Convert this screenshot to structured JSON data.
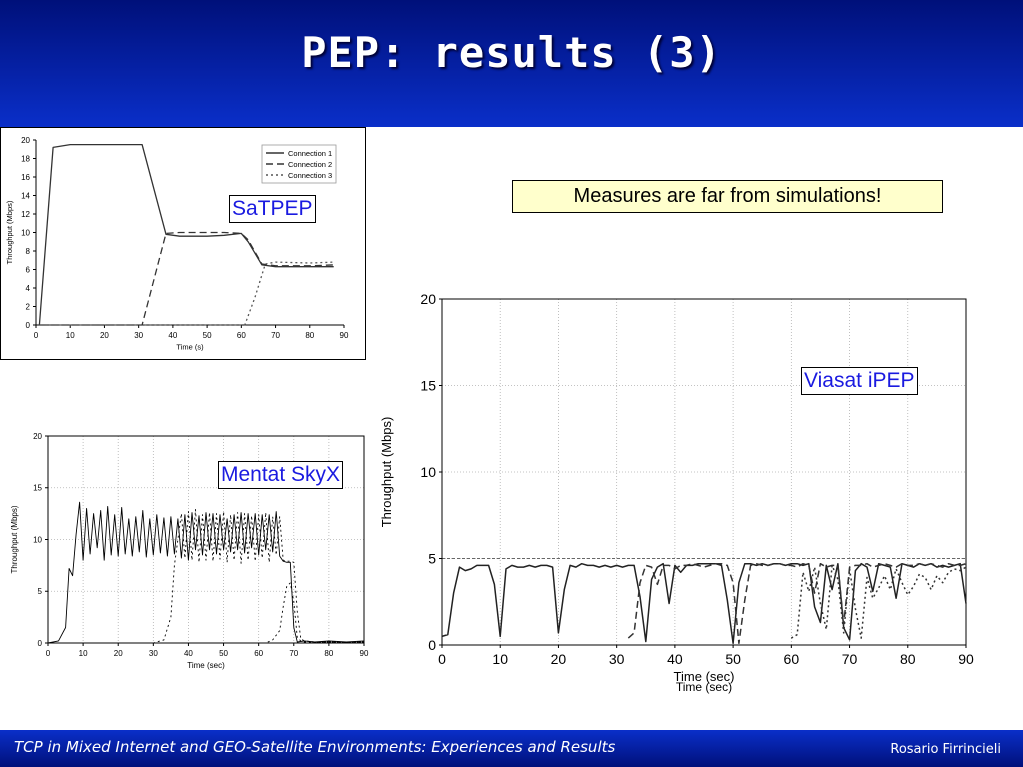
{
  "slide": {
    "title": "PEP: results (3)",
    "note": "Measures are far from simulations!",
    "footer_left": "TCP in Mixed Internet and GEO-Satellite Environments: Experiences and Results",
    "footer_right": "Rosario Firrincieli"
  },
  "chart_data": [
    {
      "id": "satpep",
      "type": "line",
      "label": "SaTPEP",
      "xlabel": "Time (s)",
      "ylabel": "Throughput (Mbps)",
      "xlim": [
        0,
        90
      ],
      "ylim": [
        0,
        20
      ],
      "xticks": [
        0,
        10,
        20,
        30,
        40,
        50,
        60,
        70,
        80,
        90
      ],
      "yticks": [
        0,
        2,
        4,
        6,
        8,
        10,
        12,
        14,
        16,
        18,
        20
      ],
      "grid": false,
      "legend": "top-right",
      "series": [
        {
          "name": "Connection 1",
          "style": "solid",
          "color": "#333333",
          "x": [
            1,
            5,
            10,
            20,
            30,
            31,
            38,
            42,
            50,
            55,
            60,
            62,
            66,
            70,
            80,
            87
          ],
          "y": [
            0,
            19.2,
            19.5,
            19.5,
            19.5,
            19.5,
            9.8,
            9.6,
            9.6,
            9.7,
            9.9,
            9.0,
            6.5,
            6.3,
            6.3,
            6.3
          ]
        },
        {
          "name": "Connection 2",
          "style": "dashed",
          "color": "#333333",
          "x": [
            1,
            31,
            38,
            42,
            50,
            55,
            60,
            62,
            66,
            70,
            80,
            87
          ],
          "y": [
            0,
            0,
            9.9,
            10.0,
            10.0,
            10.0,
            9.9,
            9.2,
            6.6,
            6.4,
            6.4,
            6.5
          ]
        },
        {
          "name": "Connection 3",
          "style": "dotted",
          "color": "#555555",
          "x": [
            1,
            61,
            64,
            67,
            70,
            80,
            87
          ],
          "y": [
            0,
            0,
            3.0,
            6.6,
            6.8,
            6.7,
            6.8
          ]
        }
      ]
    },
    {
      "id": "skyx",
      "type": "line",
      "label": "Mentat SkyX",
      "xlabel": "Time (sec)",
      "ylabel": "Throughput (Mbps)",
      "xlim": [
        0,
        90
      ],
      "ylim": [
        0,
        20
      ],
      "xticks": [
        0,
        10,
        20,
        30,
        40,
        50,
        60,
        70,
        80,
        90
      ],
      "yticks": [
        0,
        5,
        10,
        15,
        20
      ],
      "grid": true,
      "series": [
        {
          "style": "solid",
          "color": "#000000",
          "x": [
            0,
            3,
            5,
            6,
            7,
            8,
            9,
            10,
            11,
            12,
            13,
            14,
            15,
            16,
            17,
            18,
            19,
            20,
            21,
            22,
            23,
            24,
            25,
            26,
            27,
            28,
            29,
            30,
            31,
            32,
            33,
            34,
            35,
            36,
            37,
            38,
            39,
            40,
            41,
            42,
            43,
            44,
            45,
            46,
            47,
            48,
            49,
            50,
            51,
            52,
            53,
            54,
            55,
            56,
            57,
            58,
            59,
            60,
            61,
            62,
            63,
            64,
            65,
            66,
            67,
            68,
            69,
            70,
            71,
            73,
            76,
            80,
            85,
            90
          ],
          "y": [
            0,
            0.2,
            1.5,
            7.2,
            6.5,
            10.5,
            13.6,
            8.0,
            13.0,
            8.6,
            12.5,
            9.2,
            12.8,
            8.0,
            13.2,
            8.5,
            12.4,
            8.4,
            13.1,
            8.6,
            12.0,
            8.4,
            12.2,
            8.8,
            12.8,
            8.3,
            12.0,
            8.5,
            12.4,
            8.7,
            12.1,
            8.4,
            12.2,
            8.6,
            12.0,
            8.2,
            12.4,
            8.0,
            12.6,
            9.0,
            12.3,
            8.5,
            12.6,
            9.0,
            12.5,
            8.6,
            12.4,
            9.0,
            12.0,
            8.8,
            12.4,
            9.0,
            12.6,
            8.7,
            12.5,
            9.2,
            12.5,
            8.5,
            12.4,
            9.0,
            12.4,
            8.8,
            12.7,
            8.4,
            7.9,
            7.8,
            7.8,
            1.5,
            0.1,
            0.2,
            0.1,
            0.2,
            0.1,
            0.2
          ]
        },
        {
          "style": "dotted",
          "color": "#000000",
          "x": [
            0,
            30,
            33,
            35,
            36,
            37,
            38,
            39,
            40,
            41,
            42,
            43,
            44,
            45,
            46,
            47,
            48,
            49,
            50,
            51,
            52,
            53,
            54,
            55,
            56,
            57,
            58,
            59,
            60,
            61,
            62,
            63,
            64,
            65,
            66,
            67,
            68,
            69,
            70,
            71,
            72,
            73,
            76,
            80,
            85,
            90
          ],
          "y": [
            0,
            0,
            0.3,
            2.5,
            7.5,
            10.0,
            12.5,
            8.2,
            12.7,
            8.0,
            12.9,
            7.8,
            12.4,
            8.0,
            12.6,
            7.9,
            12.5,
            8.1,
            12.7,
            7.8,
            12.4,
            8.0,
            12.6,
            7.7,
            12.5,
            8.0,
            12.3,
            7.9,
            12.4,
            8.2,
            12.6,
            7.8,
            12.2,
            8.5,
            12.2,
            8.0,
            7.9,
            7.9,
            7.8,
            3.0,
            0.4,
            0.2,
            0.1,
            0.1,
            0.1,
            0.1
          ]
        },
        {
          "style": "dotted",
          "color": "#000000",
          "x": [
            0,
            62,
            64,
            66,
            67,
            68,
            69,
            70,
            71,
            72,
            73,
            76,
            80,
            90
          ],
          "y": [
            0,
            0,
            0.3,
            1.2,
            3.5,
            5.5,
            5.8,
            4.0,
            0.5,
            0.2,
            0.1,
            0.1,
            0.1,
            0.1
          ]
        }
      ]
    },
    {
      "id": "viasat",
      "type": "line",
      "label": "Viasat iPEP",
      "xlabel": "Time (sec)",
      "xlabel_ghost": "Time (sec)",
      "ylabel": "Throughput (Mbps)",
      "xlim": [
        0,
        90
      ],
      "ylim": [
        0,
        20
      ],
      "xticks": [
        0,
        10,
        20,
        30,
        40,
        50,
        60,
        70,
        80,
        90
      ],
      "yticks": [
        0,
        5,
        10,
        15,
        20
      ],
      "grid": true,
      "reference_y": 5,
      "series": [
        {
          "style": "solid",
          "color": "#222222",
          "x": [
            0,
            1,
            2,
            3,
            4,
            5,
            6,
            7,
            8,
            9,
            10,
            11,
            12,
            13,
            14,
            15,
            16,
            17,
            18,
            19,
            20,
            21,
            22,
            23,
            24,
            25,
            26,
            27,
            28,
            29,
            30,
            31,
            32,
            33,
            34,
            35,
            36,
            37,
            38,
            39,
            40,
            41,
            42,
            43,
            44,
            45,
            46,
            47,
            48,
            49,
            50,
            51,
            52,
            53,
            54,
            55,
            56,
            57,
            58,
            59,
            60,
            61,
            62,
            63,
            64,
            65,
            66,
            67,
            68,
            69,
            70,
            71,
            72,
            73,
            74,
            75,
            76,
            77,
            78,
            79,
            80,
            81,
            82,
            83,
            84,
            85,
            86,
            87,
            88,
            89,
            90
          ],
          "y": [
            0.5,
            0.6,
            3.0,
            4.5,
            4.3,
            4.4,
            4.6,
            4.6,
            4.6,
            3.5,
            0.5,
            4.4,
            4.6,
            4.5,
            4.5,
            4.6,
            4.5,
            4.6,
            4.6,
            4.5,
            0.7,
            3.2,
            4.6,
            4.5,
            4.7,
            4.6,
            4.6,
            4.5,
            4.6,
            4.5,
            4.6,
            4.5,
            4.6,
            4.6,
            2.8,
            0.2,
            3.8,
            4.5,
            4.7,
            2.4,
            4.6,
            4.2,
            4.6,
            4.6,
            4.7,
            4.7,
            4.7,
            4.7,
            4.6,
            2.6,
            0.1,
            3.6,
            4.7,
            4.7,
            4.6,
            4.7,
            4.6,
            4.7,
            4.7,
            4.6,
            4.7,
            4.7,
            4.6,
            4.7,
            2.2,
            1.3,
            4.6,
            3.2,
            4.7,
            1.0,
            0.3,
            4.3,
            4.7,
            4.5,
            3.1,
            4.7,
            4.6,
            4.5,
            2.7,
            4.7,
            4.6,
            4.5,
            4.7,
            4.6,
            4.7,
            4.5,
            4.6,
            4.5,
            4.6,
            4.7,
            2.4
          ]
        },
        {
          "style": "dashed",
          "color": "#333333",
          "x": [
            32,
            33,
            34,
            35,
            36,
            37,
            38,
            39,
            40,
            41,
            42,
            43,
            44,
            45,
            46,
            47,
            48,
            49,
            50,
            51,
            52,
            53,
            54,
            55,
            56,
            57,
            58,
            59,
            60,
            61,
            62,
            63,
            64,
            65,
            66,
            67,
            68,
            69,
            70,
            71,
            72,
            73,
            74,
            75,
            76,
            77,
            78,
            79,
            80,
            81,
            82,
            83,
            84,
            85,
            86,
            87,
            88,
            89,
            90
          ],
          "y": [
            0.4,
            0.7,
            3.6,
            4.6,
            4.5,
            3.5,
            4.6,
            4.6,
            4.4,
            4.6,
            4.6,
            4.7,
            4.6,
            4.5,
            4.6,
            4.7,
            4.7,
            4.6,
            3.6,
            0.1,
            2.6,
            4.6,
            4.7,
            4.6,
            4.6,
            4.7,
            4.7,
            4.6,
            4.6,
            4.5,
            4.7,
            4.6,
            3.0,
            4.7,
            4.5,
            4.6,
            4.6,
            1.2,
            4.5,
            4.6,
            4.6,
            4.7,
            4.5,
            4.6,
            4.7,
            4.6,
            4.5,
            4.7,
            4.6,
            4.6,
            4.7,
            4.6,
            4.7,
            4.6,
            4.5,
            4.7,
            4.6,
            4.6,
            4.7
          ]
        },
        {
          "style": "dotted",
          "color": "#333333",
          "x": [
            60,
            61,
            62,
            63,
            64,
            65,
            66,
            67,
            68,
            69,
            70,
            71,
            72,
            73,
            74,
            75,
            76,
            77,
            78,
            79,
            80,
            81,
            82,
            83,
            84,
            85,
            86,
            87,
            88,
            89,
            90
          ],
          "y": [
            0.4,
            0.6,
            4.2,
            3.1,
            4.5,
            2.4,
            0.9,
            4.6,
            3.8,
            0.7,
            4.4,
            2.1,
            0.4,
            3.9,
            2.7,
            3.3,
            4.0,
            3.2,
            4.4,
            3.6,
            2.9,
            3.4,
            4.1,
            3.9,
            3.2,
            4.0,
            3.6,
            4.2,
            4.4,
            4.3,
            4.5
          ]
        }
      ]
    }
  ]
}
